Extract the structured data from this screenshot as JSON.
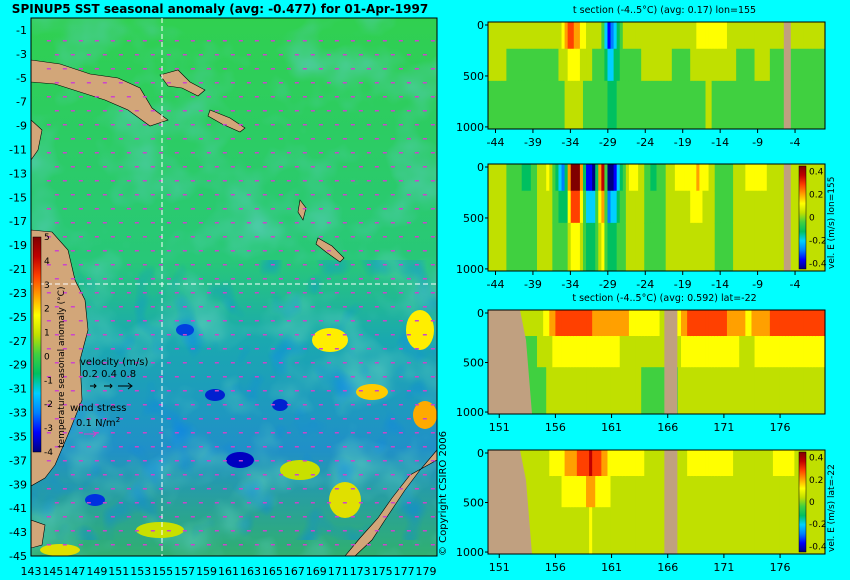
{
  "colors": {
    "background": "#00ffff",
    "land": "#d2a679",
    "masked": "#c0a080",
    "wind_arrow": "#cc44cc",
    "crosshair": "#ffffff"
  },
  "colorscale": [
    "#00007f",
    "#0000ff",
    "#0080ff",
    "#00d0ff",
    "#00c060",
    "#40d040",
    "#c0e000",
    "#ffff00",
    "#ffa000",
    "#ff4000",
    "#c00000",
    "#800000"
  ],
  "map": {
    "title": "SPINUP5 SST seasonal anomaly (avg: -0.477) for 01-Apr-1997",
    "colorbar_label": "temperature seasonal anomaly (°C)",
    "colorbar_ticks": [
      "5",
      "4",
      "3",
      "2",
      "1",
      "0",
      "-1",
      "-2",
      "-3",
      "-4"
    ],
    "velocity_label": "velocity (m/s)",
    "velocity_ticks": "0.2 0.4 0.8",
    "wind_label": "wind stress",
    "wind_value": "0.1 N/m",
    "wind_exp": "2",
    "lat_labels": [
      "-1",
      "-3",
      "-5",
      "-7",
      "-9",
      "-11",
      "-13",
      "-15",
      "-17",
      "-19",
      "-21",
      "-23",
      "-25",
      "-27",
      "-29",
      "-31",
      "-33",
      "-35",
      "-37",
      "-39",
      "-41",
      "-43",
      "-45"
    ],
    "lon_labels": [
      "143",
      "145",
      "147",
      "149",
      "151",
      "153",
      "155",
      "157",
      "159",
      "161",
      "163",
      "165",
      "167",
      "169",
      "171",
      "173",
      "175",
      "177",
      "179"
    ]
  },
  "copyright": "© Copyright CSIRO 2006",
  "panels": [
    {
      "title": "t section (-4..5°C) (avg: 0.17) lon=155",
      "y_ticks": [
        "0",
        "500",
        "1000"
      ],
      "x_ticks": [
        "-44",
        "-39",
        "-34",
        "-29",
        "-24",
        "-19",
        "-14",
        "-9",
        "-4"
      ]
    },
    {
      "title": "",
      "y_ticks": [
        "0",
        "500",
        "1000"
      ],
      "x_ticks": [
        "-44",
        "-39",
        "-34",
        "-29",
        "-24",
        "-19",
        "-14",
        "-9",
        "-4"
      ],
      "cb_label": "vel. E (m/s) lon=155",
      "cb_ticks": [
        "0.4",
        "0.2",
        "0",
        "-0.2",
        "-0.4"
      ]
    },
    {
      "title": "t section (-4..5°C) (avg: 0.592) lat=-22",
      "y_ticks": [
        "0",
        "500",
        "1000"
      ],
      "x_ticks": [
        "151",
        "156",
        "161",
        "166",
        "171",
        "176"
      ]
    },
    {
      "title": "",
      "y_ticks": [
        "0",
        "500",
        "1000"
      ],
      "x_ticks": [
        "151",
        "156",
        "161",
        "166",
        "171",
        "176"
      ],
      "cb_label": "vel. E (m/s) lat=-22",
      "cb_ticks": [
        "0.4",
        "0.2",
        "0",
        "-0.2",
        "-0.4"
      ]
    }
  ],
  "chart_data": [
    {
      "type": "heatmap",
      "title": "SPINUP5 SST seasonal anomaly (avg: -0.477) for 01-Apr-1997",
      "xlabel": "",
      "ylabel": "",
      "xlim": [
        143,
        180
      ],
      "ylim": [
        -45,
        0
      ],
      "colorbar": {
        "label": "temperature seasonal anomaly (°C)",
        "range": [
          -4,
          5
        ]
      },
      "overlays": [
        "velocity (m/s)",
        "wind stress 0.1 N/m2"
      ],
      "section_lines": {
        "lon": 155,
        "lat": -22
      }
    },
    {
      "type": "heatmap",
      "title": "t section (-4..5°C) (avg: 0.17) lon=155",
      "x_range": [
        -45,
        0
      ],
      "y_range": [
        0,
        1000
      ],
      "y_inverted": true,
      "value_range": [
        -4,
        5
      ],
      "profile_x": [
        -44,
        -39,
        -36,
        -34,
        -32,
        -30,
        -29,
        -27,
        -24,
        -21,
        -19,
        -16,
        -14,
        -11,
        -9,
        -4
      ],
      "profile_value": [
        1.0,
        0.5,
        0.5,
        3.5,
        1.0,
        0.5,
        -3.0,
        0.5,
        1.0,
        1.0,
        0.5,
        2.0,
        1.5,
        0.5,
        1.0,
        0.5
      ]
    },
    {
      "type": "heatmap",
      "title": "vel. E (m/s) lon=155",
      "x_range": [
        -45,
        0
      ],
      "y_range": [
        0,
        1000
      ],
      "y_inverted": true,
      "value_range": [
        -0.4,
        0.4
      ],
      "profile_x": [
        -44,
        -40,
        -37,
        -35,
        -34,
        -33,
        -32,
        -31,
        -30,
        -29,
        -26,
        -23,
        -20,
        -17,
        -14,
        -10,
        -6,
        -4
      ],
      "profile_value": [
        0.05,
        -0.1,
        0.1,
        -0.3,
        0.4,
        0.4,
        -0.3,
        -0.4,
        0.45,
        -0.45,
        0.15,
        -0.1,
        0.1,
        0.15,
        -0.05,
        0.1,
        0.05,
        0.0
      ]
    },
    {
      "type": "heatmap",
      "title": "t section (-4..5°C) (avg: 0.592) lat=-22",
      "x_range": [
        150,
        180
      ],
      "y_range": [
        0,
        1000
      ],
      "y_inverted": true,
      "value_range": [
        -4,
        5
      ],
      "profile_x": [
        151,
        154,
        156,
        159,
        161,
        163,
        166,
        168,
        171,
        173,
        176,
        178
      ],
      "profile_value": [
        0.5,
        0.5,
        3.0,
        3.0,
        2.5,
        2.0,
        1.0,
        3.5,
        3.0,
        2.0,
        3.5,
        3.0
      ]
    },
    {
      "type": "heatmap",
      "title": "vel. E (m/s) lat=-22",
      "x_range": [
        150,
        180
      ],
      "y_range": [
        0,
        1000
      ],
      "y_inverted": true,
      "value_range": [
        -0.4,
        0.4
      ],
      "profile_x": [
        151,
        154,
        156,
        159,
        161,
        163,
        166,
        168,
        171,
        173,
        176,
        178
      ],
      "profile_value": [
        0.0,
        0.0,
        0.1,
        0.3,
        0.1,
        0.1,
        0.0,
        0.1,
        0.1,
        0.0,
        0.1,
        0.05
      ]
    }
  ]
}
